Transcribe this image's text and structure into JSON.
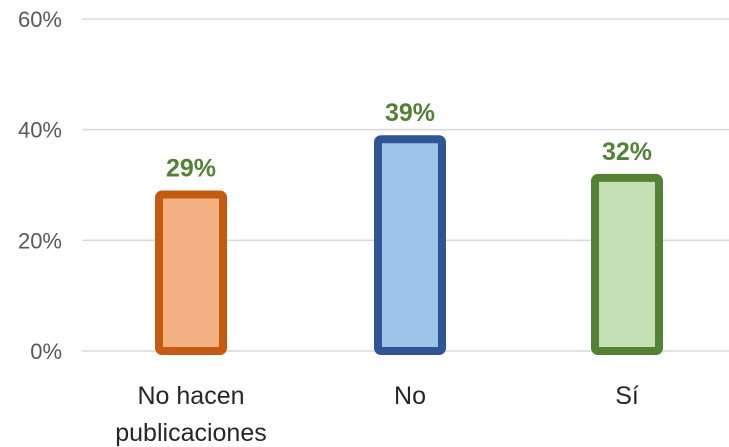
{
  "chart_data": {
    "type": "bar",
    "categories": [
      [
        "No hacen",
        "publicaciones"
      ],
      [
        "No"
      ],
      [
        "Sí"
      ]
    ],
    "values": [
      29,
      39,
      32
    ],
    "data_labels": [
      "29%",
      "39%",
      "32%"
    ],
    "ylim": [
      0,
      60
    ],
    "yticks": [
      0,
      20,
      40,
      60
    ],
    "ytick_labels": [
      "0%",
      "20%",
      "40%",
      "60%"
    ],
    "grid": true,
    "colors": {
      "fills": [
        "#f4b183",
        "#9dc3e6",
        "#c5e0b4"
      ],
      "strokes": [
        "#c55a11",
        "#2f5597",
        "#548235"
      ],
      "data_label": "#548235",
      "grid": "#d9d9d9"
    }
  }
}
